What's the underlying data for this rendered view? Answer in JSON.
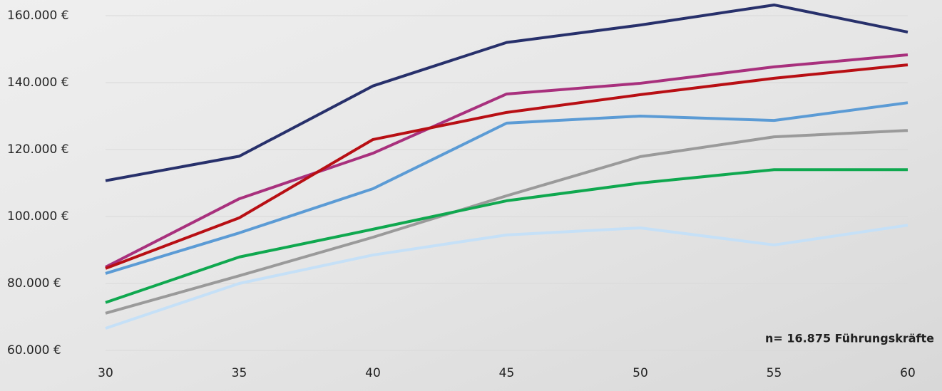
{
  "chart_data": {
    "type": "line",
    "annotation": "n= 16.875 Führungskräfte",
    "x": [
      30,
      35,
      40,
      45,
      50,
      55,
      60
    ],
    "xlim": [
      30,
      60
    ],
    "xticks": [
      30,
      35,
      40,
      45,
      50,
      55,
      60
    ],
    "ylim": [
      60000,
      164000
    ],
    "yticks": [
      {
        "value": 60000,
        "label": "60.000 €"
      },
      {
        "value": 80000,
        "label": "80.000 €"
      },
      {
        "value": 100000,
        "label": "100.000 €"
      },
      {
        "value": 120000,
        "label": "120.000 €"
      },
      {
        "value": 140000,
        "label": "140.000 €"
      },
      {
        "value": 160000,
        "label": "160.000 €"
      }
    ],
    "grid": true,
    "series": [
      {
        "color": "#27306b",
        "values": [
          110700,
          118000,
          139000,
          152000,
          157200,
          163200,
          155100
        ]
      },
      {
        "color": "#a8307d",
        "values": [
          84900,
          105300,
          118900,
          136600,
          139800,
          144700,
          148300
        ]
      },
      {
        "color": "#b80f14",
        "values": [
          84500,
          99600,
          123000,
          131100,
          136400,
          141300,
          145300
        ]
      },
      {
        "color": "#5b9bd5",
        "values": [
          83000,
          95100,
          108300,
          127900,
          130000,
          128700,
          134000
        ]
      },
      {
        "color": "#9a9a9a",
        "values": [
          71100,
          82300,
          93800,
          106200,
          117900,
          123800,
          125700
        ]
      },
      {
        "color": "#0fa84f",
        "values": [
          74300,
          87900,
          96200,
          104700,
          110000,
          114000,
          114000
        ]
      },
      {
        "color": "#c5e0f7",
        "values": [
          66600,
          80000,
          88500,
          94500,
          96600,
          91500,
          97400
        ]
      }
    ]
  }
}
